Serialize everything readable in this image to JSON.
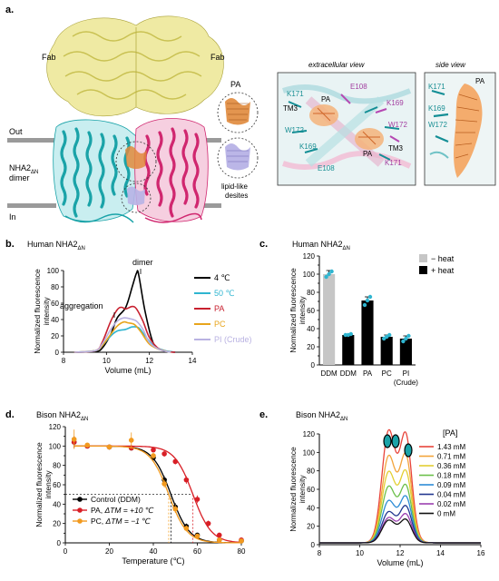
{
  "panel_a": {
    "label": "a.",
    "fab_left": "Fab",
    "fab_right": "Fab",
    "out": "Out",
    "in": "In",
    "protein_line1": "NHA2",
    "protein_sub": "ΔN",
    "protein_line2": "dimer",
    "pa_label": "PA",
    "desites_line1": "lipid-like",
    "desites_line2": "desites",
    "extracellular": {
      "title": "extracellular view",
      "labels": [
        "K171",
        "TM3",
        "PA",
        "E108",
        "K169",
        "W172",
        "W172",
        "K169",
        "PA",
        "TM3",
        "E108",
        "K171"
      ]
    },
    "side": {
      "title": "side view",
      "labels": [
        "K171",
        "K169",
        "W172",
        "PA"
      ]
    },
    "colors": {
      "fab": "#e4e07a",
      "chain_a": "#1aa3a8",
      "chain_b": "#d0276f",
      "lipid": "#e08a3c",
      "desite": "#b7b2e6"
    }
  },
  "panel_b": {
    "label": "b.",
    "title": "Human NHA2",
    "title_sub": "ΔN",
    "ann_dimer": "dimer",
    "ann_aggregation": "aggregation",
    "chart_data": {
      "type": "line",
      "xlabel": "Volume (mL)",
      "ylabel": "Normalized fluorescence intensity",
      "xlim": [
        8,
        14
      ],
      "ylim": [
        0,
        100
      ],
      "xticks": [
        "8",
        "10",
        "12",
        "14"
      ],
      "yticks": [
        "0",
        "20",
        "40",
        "60",
        "80",
        "100"
      ],
      "legend_position": "right",
      "series": [
        {
          "name": "4 ℃",
          "color": "#000000",
          "x": [
            8.5,
            9.5,
            9.8,
            10.2,
            10.5,
            10.9,
            11.2,
            11.4,
            11.5,
            11.8,
            12.2,
            12.7,
            13.2
          ],
          "y": [
            0,
            1,
            5,
            22,
            42,
            55,
            80,
            97,
            95,
            50,
            10,
            2,
            0
          ]
        },
        {
          "name": "50 ℃",
          "color": "#2fb5d0",
          "x": [
            8.5,
            9.5,
            9.8,
            10.2,
            10.5,
            10.9,
            11.2,
            11.5,
            11.8,
            12.2,
            12.7,
            13.2
          ],
          "y": [
            0,
            2,
            8,
            20,
            26,
            28,
            31,
            30,
            20,
            8,
            2,
            0
          ]
        },
        {
          "name": "PA",
          "color": "#c8202f",
          "x": [
            8.5,
            9.5,
            9.8,
            10.2,
            10.5,
            10.7,
            10.9,
            11.2,
            11.4,
            11.7,
            12.0,
            12.4,
            12.8,
            13.2
          ],
          "y": [
            0,
            2,
            12,
            38,
            52,
            55,
            53,
            56,
            53,
            38,
            18,
            5,
            1,
            0
          ]
        },
        {
          "name": "PC",
          "color": "#e8a51c",
          "x": [
            8.5,
            9.5,
            9.8,
            10.2,
            10.5,
            10.8,
            11.0,
            11.3,
            11.6,
            12.0,
            12.5,
            13.0
          ],
          "y": [
            0,
            2,
            8,
            22,
            32,
            37,
            36,
            34,
            25,
            10,
            3,
            0
          ]
        },
        {
          "name": "PI (Crude)",
          "color": "#b9b2e2",
          "x": [
            8.5,
            9.5,
            9.8,
            10.2,
            10.5,
            10.8,
            11.1,
            11.4,
            11.7,
            12.0,
            12.5,
            13.0
          ],
          "y": [
            0,
            2,
            10,
            28,
            38,
            42,
            41,
            38,
            28,
            12,
            3,
            0
          ]
        }
      ]
    }
  },
  "panel_c": {
    "label": "c.",
    "title": "Human NHA2",
    "title_sub": "ΔN",
    "chart_data": {
      "type": "bar",
      "ylabel": "Normalized fluorescence intensity",
      "ylim": [
        0,
        120
      ],
      "yticks": [
        "0",
        "10",
        "20",
        "30",
        "40",
        "50",
        "60",
        "70",
        "80",
        "90",
        "100",
        "110",
        "120"
      ],
      "categories": [
        "DDM",
        "DDM",
        "PA",
        "PC",
        "PI"
      ],
      "category_sublabels": [
        "",
        "",
        "",
        "",
        "(Crude)"
      ],
      "values": [
        100,
        33,
        71,
        31,
        29
      ],
      "errors": [
        4,
        1,
        4,
        2,
        3
      ],
      "groups": [
        "− heat",
        "+ heat",
        "+ heat",
        "+ heat",
        "+ heat"
      ],
      "points": [
        [
          97,
          100,
          103
        ],
        [
          33,
          33,
          34
        ],
        [
          66,
          71,
          75
        ],
        [
          29,
          31,
          33
        ],
        [
          26,
          29,
          32
        ]
      ],
      "legend": [
        {
          "label": "− heat",
          "color": "#c6c6c6"
        },
        {
          "label": "+ heat",
          "color": "#000000"
        }
      ],
      "legend_position": "top-right",
      "point_color": "#2fb5d0"
    }
  },
  "panel_d": {
    "label": "d.",
    "title": "Bison NHA2",
    "title_sub": "ΔN",
    "chart_data": {
      "type": "scatter",
      "xlabel": "Temperature (℃)",
      "ylabel": "Normalized fluorescence intensity",
      "xlim": [
        0,
        80
      ],
      "ylim": [
        0,
        120
      ],
      "xticks": [
        "0",
        "20",
        "40",
        "60",
        "80"
      ],
      "yticks": [
        "0",
        "10",
        "20",
        "30",
        "40",
        "50",
        "60",
        "70",
        "80",
        "90",
        "100",
        "110",
        "120"
      ],
      "legend_position": "bottom-left",
      "series": [
        {
          "name": "Control (DDM)",
          "delta": "",
          "color": "#000000",
          "tm": 48,
          "x": [
            4,
            10,
            20,
            30,
            40,
            45,
            50,
            55,
            60,
            70,
            80
          ],
          "y": [
            104,
            100,
            99,
            98,
            88,
            65,
            37,
            17,
            8,
            3,
            2
          ],
          "err": [
            6,
            2,
            2,
            2,
            3,
            4,
            4,
            3,
            2,
            1,
            1
          ]
        },
        {
          "name": "PA, ",
          "delta": "ΔTM = +10 ℃",
          "color": "#d81f26",
          "tm": 58,
          "x": [
            4,
            10,
            20,
            30,
            40,
            45,
            50,
            55,
            60,
            65,
            70,
            80
          ],
          "y": [
            104,
            100,
            99,
            98,
            96,
            92,
            84,
            65,
            45,
            20,
            8,
            3
          ],
          "err": [
            6,
            2,
            2,
            2,
            2,
            3,
            3,
            4,
            4,
            3,
            2,
            1
          ]
        },
        {
          "name": "PC, ",
          "delta": "ΔTM = −1 ℃",
          "color": "#f29a1f",
          "tm": 47,
          "x": [
            4,
            10,
            20,
            30,
            40,
            45,
            50,
            55,
            60,
            70,
            80
          ],
          "y": [
            107,
            101,
            99,
            106,
            90,
            61,
            35,
            15,
            7,
            3,
            2
          ],
          "err": [
            10,
            2,
            2,
            8,
            3,
            4,
            4,
            3,
            2,
            1,
            1
          ]
        }
      ]
    }
  },
  "panel_e": {
    "label": "e.",
    "title": "Bison NHA2",
    "title_sub": "ΔN",
    "chart_data": {
      "type": "line",
      "xlabel": "Volume (mL)",
      "ylabel": "Normalized fluorescence intensity",
      "xlim": [
        8,
        16
      ],
      "ylim": [
        0,
        120
      ],
      "xticks": [
        "8",
        "10",
        "12",
        "14",
        "16"
      ],
      "yticks": [
        "0",
        "20",
        "40",
        "60",
        "80",
        "100",
        "120"
      ],
      "legend_title": "[PA]",
      "legend_position": "right",
      "series": [
        {
          "name": "1.43 mM",
          "color": "#e8443a",
          "peak1": 100,
          "peak2": 92
        },
        {
          "name": "0.71 mM",
          "color": "#f3a43b",
          "peak1": 77,
          "peak2": 75
        },
        {
          "name": "0.36 mM",
          "color": "#e3cf33",
          "peak1": 63,
          "peak2": 61
        },
        {
          "name": "0.18 mM",
          "color": "#6cc04a",
          "peak1": 50,
          "peak2": 49
        },
        {
          "name": "0.09 mM",
          "color": "#2d8cd6",
          "peak1": 37,
          "peak2": 40
        },
        {
          "name": "0.04 mM",
          "color": "#22378f",
          "peak1": 27,
          "peak2": 32
        },
        {
          "name": "0.02 mM",
          "color": "#9b3fb0",
          "peak1": 22,
          "peak2": 25
        },
        {
          "name": "0 mM",
          "color": "#111111",
          "peak1": 20,
          "peak2": 20
        }
      ]
    }
  }
}
